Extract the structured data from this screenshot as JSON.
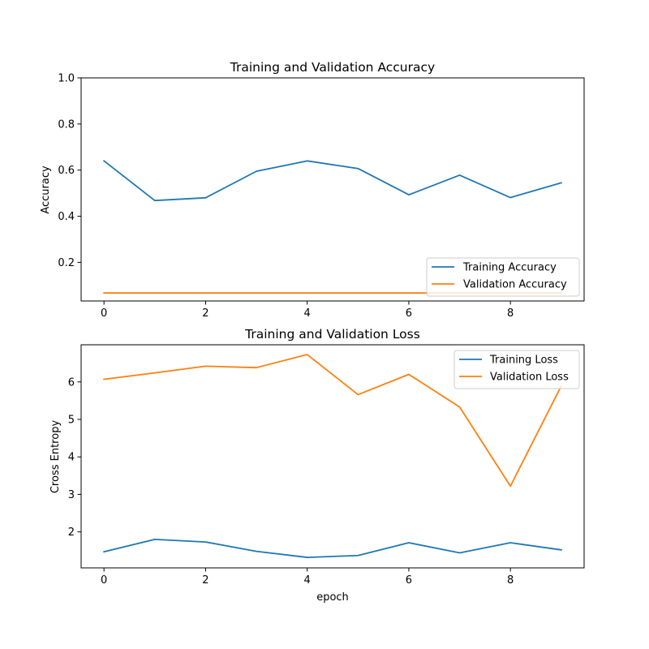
{
  "chart_data": [
    {
      "type": "line",
      "title": "Training and Validation Accuracy",
      "xlabel": "",
      "ylabel": "Accuracy",
      "xlim": [
        -0.45,
        9.45
      ],
      "ylim": [
        0.0325,
        1.0
      ],
      "x_ticks": [
        0,
        2,
        4,
        6,
        8
      ],
      "y_ticks": [
        0.2,
        0.4,
        0.6,
        0.8,
        1.0
      ],
      "y_tick_labels": [
        "0.2",
        "0.4",
        "0.6",
        "0.8",
        "1.0"
      ],
      "legend_position": "lower-right",
      "grid": false,
      "x": [
        0,
        1,
        2,
        3,
        4,
        5,
        6,
        7,
        8,
        9
      ],
      "series": [
        {
          "name": "Training Accuracy",
          "color": "#1f77b4",
          "values": [
            0.64,
            0.468,
            0.48,
            0.595,
            0.64,
            0.607,
            0.493,
            0.578,
            0.481,
            0.545
          ]
        },
        {
          "name": "Validation Accuracy",
          "color": "#ff7f0e",
          "values": [
            0.067,
            0.067,
            0.067,
            0.067,
            0.067,
            0.067,
            0.067,
            0.067,
            0.067,
            0.067
          ]
        }
      ]
    },
    {
      "type": "line",
      "title": "Training and Validation Loss",
      "xlabel": "epoch",
      "ylabel": "Cross Entropy",
      "xlim": [
        -0.45,
        9.45
      ],
      "ylim": [
        1.04,
        6.99
      ],
      "x_ticks": [
        0,
        2,
        4,
        6,
        8
      ],
      "y_ticks": [
        2,
        3,
        4,
        5,
        6
      ],
      "y_tick_labels": [
        "2",
        "3",
        "4",
        "5",
        "6"
      ],
      "legend_position": "upper-right",
      "grid": false,
      "x": [
        0,
        1,
        2,
        3,
        4,
        5,
        6,
        7,
        8,
        9
      ],
      "series": [
        {
          "name": "Training Loss",
          "color": "#1f77b4",
          "values": [
            1.47,
            1.8,
            1.73,
            1.48,
            1.32,
            1.37,
            1.71,
            1.44,
            1.71,
            1.52
          ]
        },
        {
          "name": "Validation Loss",
          "color": "#ff7f0e",
          "values": [
            6.07,
            6.24,
            6.42,
            6.38,
            6.73,
            5.66,
            6.2,
            5.33,
            3.22,
            5.89
          ]
        }
      ]
    }
  ]
}
